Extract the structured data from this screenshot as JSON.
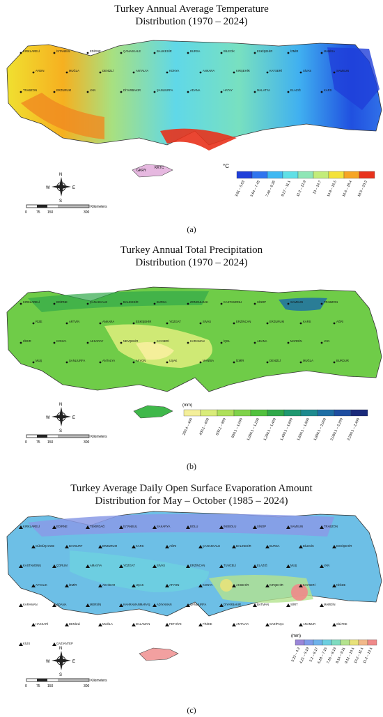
{
  "panel_a": {
    "title_line1": "Turkey Annual Average Temperature",
    "title_line2": "Distribution (1970 – 2024)",
    "tag": "(a)",
    "unit": "°C",
    "legend": [
      {
        "label": "3.81 – 5.63",
        "color": "#1f3fd9"
      },
      {
        "label": "5.64 – 7.45",
        "color": "#2f74ee"
      },
      {
        "label": "7.46 – 9.26",
        "color": "#3fb8f2"
      },
      {
        "label": "9.27 – 11.1",
        "color": "#5fe0e6"
      },
      {
        "label": "11.2 – 12.9",
        "color": "#8fe6b6"
      },
      {
        "label": "13 – 14.7",
        "color": "#c2ec7a"
      },
      {
        "label": "14.8 – 16.5",
        "color": "#f4e23a"
      },
      {
        "label": "16.6 – 18.4",
        "color": "#f6a524"
      },
      {
        "label": "18.5 – 20.2",
        "color": "#e8321c"
      }
    ],
    "inset_labels": [
      "GKRY",
      "KKTC"
    ],
    "places": [
      "KIRKLARELİ",
      "İSTANBUL",
      "EDİRNE",
      "ÇANAKKALE",
      "BALIKESİR",
      "BURSA",
      "BİLECİK",
      "ESKİŞEHİR",
      "İZMİR",
      "MANİSA",
      "AYDIN",
      "MUĞLA",
      "DENİZLİ",
      "ANTALYA",
      "KONYA",
      "ANKARA",
      "KIRŞEHİR",
      "KAYSERİ",
      "SİVAS",
      "SAMSUN",
      "TRABZON",
      "ERZURUM",
      "VAN",
      "DİYARBAKIR",
      "ŞANLIURFA",
      "ADANA",
      "HATAY",
      "MALATYA",
      "ELAZIĞ",
      "KARS"
    ]
  },
  "panel_b": {
    "title_line1": "Turkey Annual Total Precipitation",
    "title_line2": "Distribution (1970 – 2024)",
    "tag": "(b)",
    "unit": "(mm)",
    "legend": [
      {
        "label": "260.4 – 400",
        "color": "#f4ef9a"
      },
      {
        "label": "400.1 – 600",
        "color": "#d9ec7a"
      },
      {
        "label": "600.1 – 800",
        "color": "#aee05a"
      },
      {
        "label": "800.1 – 1,000",
        "color": "#7fd24a"
      },
      {
        "label": "1,000.1 – 1,200",
        "color": "#52c13e"
      },
      {
        "label": "1,200.1 – 1,400",
        "color": "#30a84a"
      },
      {
        "label": "1,400.1 – 1,600",
        "color": "#1f9870"
      },
      {
        "label": "1,600.1 – 1,800",
        "color": "#1e8a8e"
      },
      {
        "label": "1,800.1 – 2,000",
        "color": "#1f6ea4"
      },
      {
        "label": "2,000.1 – 2,200",
        "color": "#1f4ea0"
      },
      {
        "label": "2,200.1 – 2,400",
        "color": "#1a2a7a"
      }
    ],
    "places": [
      "KIRKLARELİ",
      "EDİRNE",
      "ÇANAKKALE",
      "BALIKESİR",
      "BURSA",
      "ZONGULDAK",
      "KASTAMONU",
      "SİNOP",
      "SAMSUN",
      "TRABZON",
      "RİZE",
      "ARTVİN",
      "ANKARA",
      "ESKİŞEHİR",
      "YOZGAT",
      "SİVAS",
      "ERZİNCAN",
      "ERZURUM",
      "KARS",
      "AĞRI",
      "IĞDIR",
      "KONYA",
      "AKSARAY",
      "NEVŞEHİR",
      "KAYSERİ",
      "KARAMAN",
      "İÇEL",
      "ADANA",
      "MARDİN",
      "VAN",
      "MUŞ",
      "ŞANLIURFA",
      "ANTALYA",
      "AFYON",
      "UŞAK",
      "MANİSA",
      "İZMİR",
      "DENİZLİ",
      "MUĞLA",
      "BURDUR"
    ]
  },
  "panel_c": {
    "title_line1": "Turkey Average Daily Open Surface Evaporation Amount",
    "title_line2": "Distribution for May – October (1985 – 2024)",
    "tag": "(c)",
    "unit": "(mm)",
    "legend": [
      {
        "label": "3.22 – 4.2",
        "color": "#9a86d8"
      },
      {
        "label": "4.21 – 5.19",
        "color": "#7f9be8"
      },
      {
        "label": "5.2 – 6.17",
        "color": "#6fb2ea"
      },
      {
        "label": "6.18 – 7.15",
        "color": "#6dcfe0"
      },
      {
        "label": "7.16 – 8.13",
        "color": "#7fdcc0"
      },
      {
        "label": "8.14 – 9.11",
        "color": "#b4e38e"
      },
      {
        "label": "9.12 – 10.1",
        "color": "#e8e27a"
      },
      {
        "label": "10.2 – 11.1",
        "color": "#f2b98a"
      },
      {
        "label": "11.2 – 12.1",
        "color": "#f08a8a"
      }
    ],
    "places": [
      "KIRKLARELİ",
      "EDİRNE",
      "TEKİRDAĞ",
      "İSTANBUL",
      "SAKARYA",
      "BOLU",
      "İNEBOLU",
      "SİNOP",
      "SAMSUN",
      "TRABZON",
      "GÜMÜŞHANE",
      "BAYBURT",
      "ERZURUM",
      "KARS",
      "AĞRI",
      "ÇANAKKALE",
      "BALIKESİR",
      "BURSA",
      "BİLECİK",
      "ESKİŞEHİR",
      "KASTAMONU",
      "ÇORUM",
      "AMASYA",
      "YOZGAT",
      "SİVAS",
      "ERZİNCAN",
      "TUNCELİ",
      "ELAZIĞ",
      "MUŞ",
      "VAN",
      "AYVALIK",
      "İZMİR",
      "AKHİSAR",
      "UŞAK",
      "AFYON",
      "KONYA",
      "AKSEHİR",
      "KIRŞEHİR",
      "KAYSERİ",
      "NİĞDE",
      "KARAMAN",
      "ADANA",
      "MERSİN",
      "KAHRAMANMARAŞ",
      "ADIYAMAN",
      "ŞANLIURFA",
      "DİYARBAKIR",
      "BATMAN",
      "SİİRT",
      "MARDİN",
      "HAKKARİ",
      "DENİZLİ",
      "MUĞLA",
      "DALAMAN",
      "FETHİYE",
      "FİNİKE",
      "ANTALYA",
      "GAZİPAŞA",
      "ANAMUR",
      "SİLİFKE",
      "KİLİS",
      "GAZİANTEP"
    ]
  },
  "map_common": {
    "compass": {
      "n": "N",
      "s": "S",
      "e": "E",
      "w": "W"
    },
    "scale_ticks": [
      "0",
      "75",
      "150",
      "300"
    ],
    "scale_unit": "Kilometers"
  }
}
